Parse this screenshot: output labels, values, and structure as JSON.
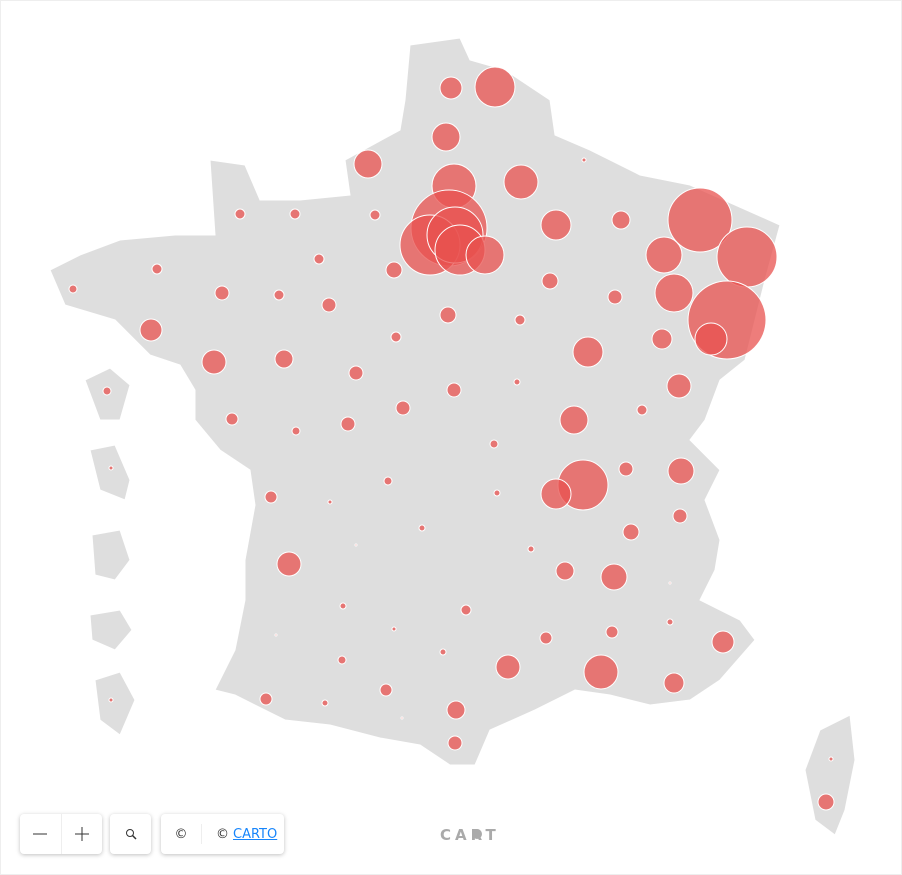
{
  "map": {
    "values": [
      121,
      400,
      196,
      196,
      4,
      484,
      289,
      25,
      25,
      25,
      1444,
      900,
      784,
      625,
      361,
      225,
      81,
      1024,
      900,
      324,
      1521,
      361,
      256,
      100,
      25,
      25,
      64,
      64,
      16,
      49,
      25,
      49,
      64,
      49,
      25,
      121,
      25,
      225,
      144,
      81,
      49,
      9,
      144,
      16,
      49,
      49,
      25,
      36,
      16,
      49,
      196,
      16,
      625,
      225,
      49,
      169,
      4,
      16,
      9,
      36,
      4,
      49,
      64,
      9,
      1,
      9,
      144,
      81,
      169,
      1,
      9,
      25,
      1,
      4,
      9,
      36,
      36,
      121,
      9,
      16,
      144,
      289,
      100,
      36,
      36,
      9,
      81,
      1,
      4,
      49,
      4,
      64
    ],
    "color": "#e8524f"
  },
  "attribution": {
    "icon": "©",
    "text": "©",
    "link": "CARTO"
  },
  "logo": "CART"
}
